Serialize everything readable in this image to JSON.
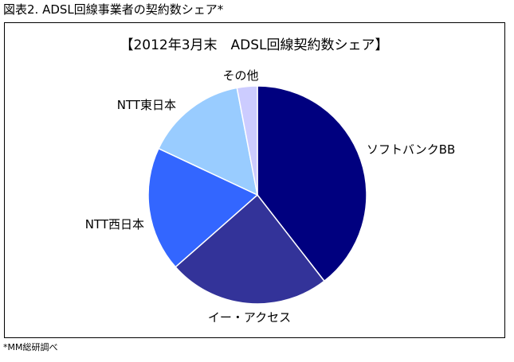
{
  "figure": {
    "title": "図表2. ADSL回線事業者の契約数シェア*",
    "note": "*MM総研調べ"
  },
  "chart_data": {
    "type": "pie",
    "title": "【2012年3月末　ADSL回線契約数シェア】",
    "categories": [
      "ソフトバンクBB",
      "イー・アクセス",
      "NTT西日本",
      "NTT東日本",
      "その他"
    ],
    "values": [
      39.5,
      24.0,
      18.5,
      15.0,
      3.0
    ],
    "colors": [
      "#00007f",
      "#333399",
      "#3366ff",
      "#99ccff",
      "#ccccff"
    ],
    "start_angle_deg": 0,
    "direction": "clockwise",
    "legend": "none"
  }
}
